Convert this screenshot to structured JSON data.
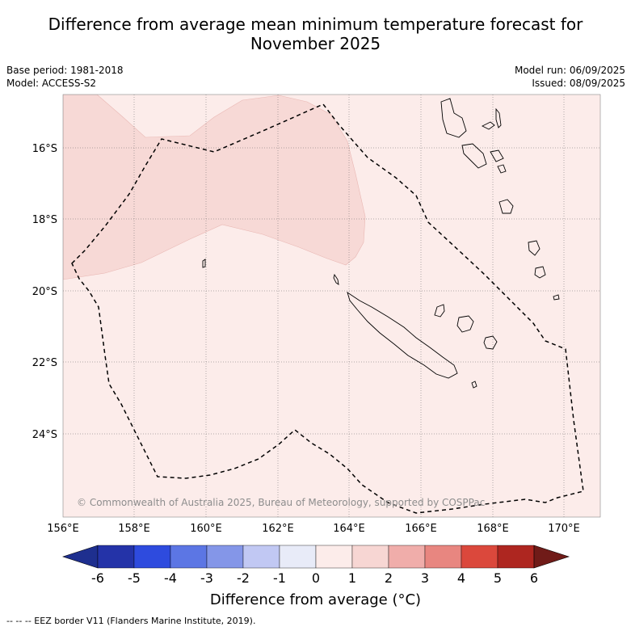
{
  "title_line1": "Difference from average mean minimum temperature forecast for",
  "title_line2": "November 2025",
  "meta_left": {
    "base_period": "Base period: 1981-2018",
    "model": "Model: ACCESS-S2"
  },
  "meta_right": {
    "model_run": "Model run: 06/09/2025",
    "issued": "Issued: 08/09/2025"
  },
  "copyright": "© Commonwealth of Australia 2025, Bureau of Meteorology, supported by COSPPac",
  "lat_labels": [
    "16°S",
    "18°S",
    "20°S",
    "22°S",
    "24°S"
  ],
  "lon_labels": [
    "156°E",
    "158°E",
    "160°E",
    "162°E",
    "164°E",
    "166°E",
    "168°E",
    "170°E"
  ],
  "colorbar": {
    "title": "Difference from average (°C)",
    "tick_labels": [
      "-6",
      "-5",
      "-4",
      "-3",
      "-2",
      "-1",
      "0",
      "1",
      "2",
      "3",
      "4",
      "5",
      "6"
    ],
    "colors": [
      "#1e2f8f",
      "#2433a8",
      "#2e4bde",
      "#5c76e4",
      "#8496e8",
      "#c1c8f3",
      "#e8ebf8",
      "#fcecea",
      "#f7d6d3",
      "#f0adaa",
      "#e88680",
      "#db483c",
      "#ae2620",
      "#701b18"
    ]
  },
  "map": {
    "background_color": "#fcecea",
    "warm_region_color": "#f7d9d6"
  },
  "footer": "-- -- -- EEZ border V11 (Flanders Marine Institute, 2019)."
}
